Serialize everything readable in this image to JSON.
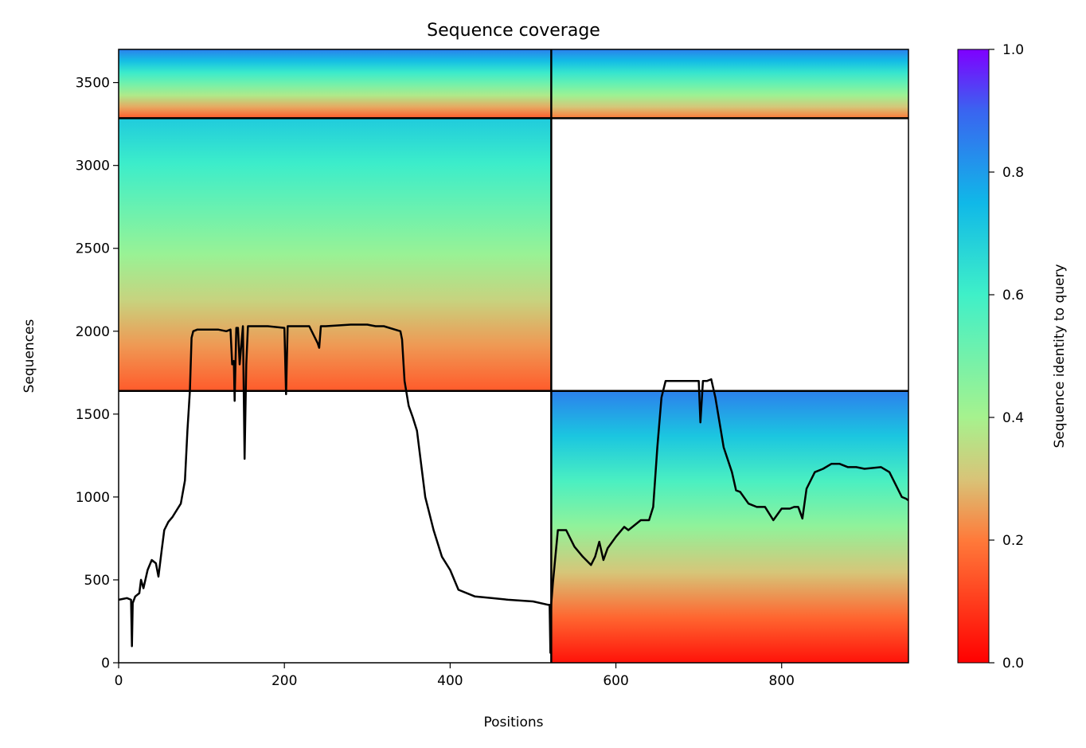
{
  "chart_data": {
    "type": "heatmap",
    "title": "Sequence coverage",
    "xlabel": "Positions",
    "ylabel": "Sequences",
    "xlim": [
      0,
      953
    ],
    "ylim": [
      0,
      3700
    ],
    "xticks": [
      0,
      200,
      400,
      600,
      800
    ],
    "yticks": [
      0,
      500,
      1000,
      1500,
      2000,
      2500,
      3000,
      3500
    ],
    "grid": false,
    "colorbar": {
      "label": "Sequence identity to query",
      "range": [
        0.0,
        1.0
      ],
      "ticks": [
        "0.0",
        "0.2",
        "0.4",
        "0.6",
        "0.8",
        "1.0"
      ],
      "colormap": "rainbow_r"
    },
    "chain_boundaries": {
      "x": 522,
      "y": [
        1640,
        3285
      ]
    },
    "coverage_blocks": [
      {
        "x0": 0,
        "x1": 522,
        "y0": 3285,
        "y1": 3700,
        "id_bottom": 0.15,
        "id_top": 0.85
      },
      {
        "x0": 522,
        "x1": 953,
        "y0": 3285,
        "y1": 3700,
        "id_bottom": 0.2,
        "id_top": 0.85
      },
      {
        "x0": 0,
        "x1": 522,
        "y0": 1640,
        "y1": 3285,
        "id_bottom": 0.15,
        "id_top": 0.7
      },
      {
        "x0": 522,
        "x1": 953,
        "y0": 0,
        "y1": 1640,
        "id_bottom": 0.03,
        "id_top": 0.85
      }
    ],
    "series": [
      {
        "type": "line",
        "color": "#000000",
        "x": [
          0,
          5,
          10,
          15,
          16,
          17,
          20,
          25,
          27,
          30,
          35,
          40,
          45,
          48,
          52,
          55,
          60,
          65,
          70,
          75,
          80,
          83,
          86,
          88,
          90,
          95,
          100,
          110,
          120,
          130,
          135,
          137,
          139,
          140,
          142,
          144,
          146,
          150,
          152,
          154,
          156,
          160,
          180,
          200,
          202,
          204,
          210,
          230,
          240,
          242,
          244,
          250,
          280,
          300,
          310,
          320,
          340,
          342,
          345,
          350,
          355,
          360,
          365,
          370,
          380,
          390,
          400,
          410,
          430,
          450,
          470,
          500,
          518,
          520,
          521,
          522,
          524,
          530,
          540,
          550,
          560,
          570,
          575,
          580,
          585,
          590,
          600,
          610,
          615,
          620,
          630,
          640,
          645,
          650,
          655,
          660,
          665,
          670,
          680,
          700,
          702,
          705,
          710,
          715,
          720,
          730,
          740,
          745,
          750,
          760,
          770,
          780,
          790,
          800,
          810,
          815,
          820,
          825,
          830,
          840,
          850,
          860,
          870,
          880,
          890,
          900,
          920,
          930,
          940,
          945,
          950,
          953
        ],
        "y": [
          380,
          385,
          390,
          380,
          100,
          360,
          400,
          420,
          500,
          450,
          560,
          620,
          600,
          520,
          680,
          800,
          850,
          880,
          920,
          960,
          1100,
          1400,
          1640,
          1960,
          2000,
          2010,
          2010,
          2010,
          2010,
          2000,
          2010,
          1800,
          1820,
          1580,
          2020,
          2020,
          1800,
          2030,
          1230,
          1800,
          2030,
          2030,
          2030,
          2020,
          1620,
          2030,
          2030,
          2030,
          1930,
          1900,
          2030,
          2030,
          2040,
          2040,
          2030,
          2030,
          2000,
          1950,
          1700,
          1550,
          1480,
          1400,
          1200,
          1000,
          800,
          640,
          560,
          440,
          400,
          390,
          380,
          370,
          350,
          350,
          60,
          360,
          480,
          800,
          800,
          700,
          640,
          590,
          640,
          730,
          620,
          690,
          760,
          820,
          800,
          820,
          860,
          860,
          940,
          1300,
          1600,
          1700,
          1700,
          1700,
          1700,
          1700,
          1450,
          1700,
          1700,
          1710,
          1600,
          1300,
          1150,
          1040,
          1030,
          960,
          940,
          940,
          860,
          930,
          930,
          940,
          940,
          870,
          1050,
          1150,
          1170,
          1200,
          1200,
          1180,
          1180,
          1170,
          1180,
          1150,
          1050,
          1000,
          990,
          980
        ]
      }
    ]
  }
}
